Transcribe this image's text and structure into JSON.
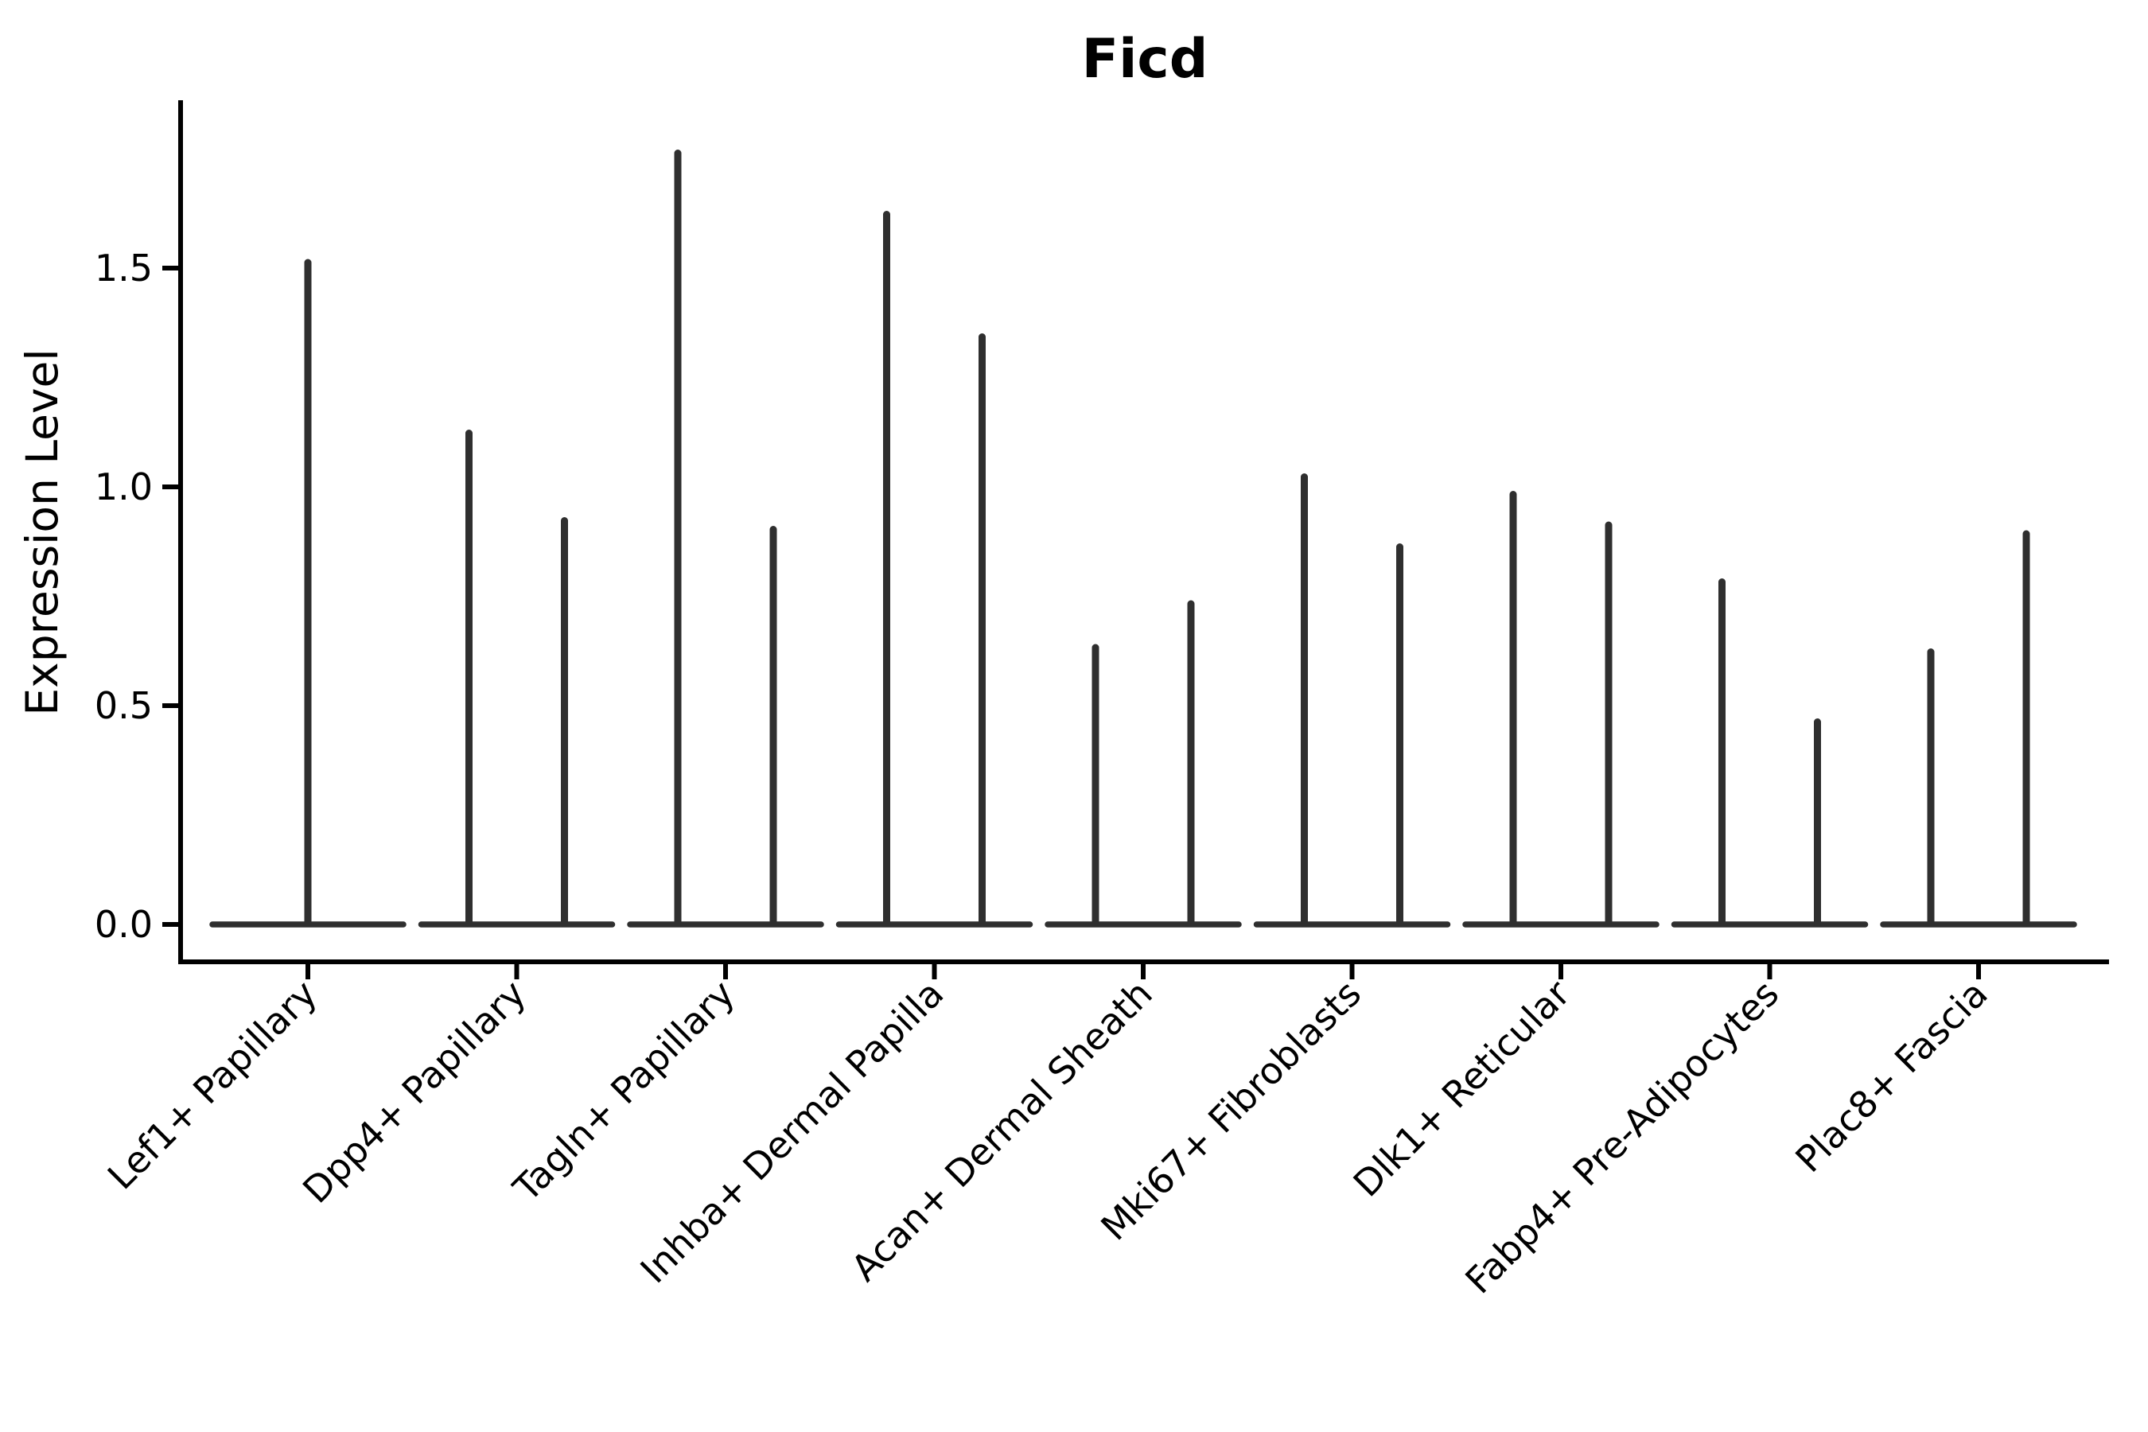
{
  "chart_data": {
    "type": "violin",
    "title": "Ficd",
    "xlabel": "",
    "ylabel": "Expression Level",
    "grid": false,
    "legend": null,
    "ylim": [
      0,
      1.88
    ],
    "yticks": [
      0.0,
      0.5,
      1.0,
      1.5
    ],
    "ytick_labels": [
      "0.0",
      "0.5",
      "1.0",
      "1.5"
    ],
    "categories": [
      "Lef1+ Papillary",
      "Dpp4+ Papillary",
      "Tagln+ Papillary",
      "Inhba+ Dermal Papilla",
      "Acan+ Dermal Sheath",
      "Mki67+ Fibroblasts",
      "Dlk1+ Reticular",
      "Fabp4+ Pre-Adipocytes",
      "Plac8+ Fascia"
    ],
    "series": [
      {
        "name": "violin-left",
        "values": [
          1.52,
          1.13,
          1.77,
          1.63,
          0.64,
          1.03,
          0.99,
          0.79,
          0.63
        ]
      },
      {
        "name": "violin-right",
        "values": [
          null,
          0.93,
          0.91,
          1.35,
          0.74,
          0.87,
          0.92,
          0.47,
          0.9
        ]
      }
    ],
    "violins": [
      {
        "category": "Lef1+ Papillary",
        "groups": [
          {
            "max": 1.52,
            "width": "full"
          }
        ]
      },
      {
        "category": "Dpp4+ Papillary",
        "groups": [
          {
            "max": 1.13
          },
          {
            "max": 0.93
          }
        ]
      },
      {
        "category": "Tagln+ Papillary",
        "groups": [
          {
            "max": 1.77
          },
          {
            "max": 0.91
          }
        ]
      },
      {
        "category": "Inhba+ Dermal Papilla",
        "groups": [
          {
            "max": 1.63
          },
          {
            "max": 1.35
          }
        ]
      },
      {
        "category": "Acan+ Dermal Sheath",
        "groups": [
          {
            "max": 0.64
          },
          {
            "max": 0.74
          }
        ]
      },
      {
        "category": "Mki67+ Fibroblasts",
        "groups": [
          {
            "max": 1.03
          },
          {
            "max": 0.87
          }
        ]
      },
      {
        "category": "Dlk1+ Reticular",
        "groups": [
          {
            "max": 0.99
          },
          {
            "max": 0.92
          }
        ]
      },
      {
        "category": "Fabp4+ Pre-Adipocytes",
        "groups": [
          {
            "max": 0.79
          },
          {
            "max": 0.47
          }
        ]
      },
      {
        "category": "Plac8+ Fascia",
        "groups": [
          {
            "max": 0.63
          },
          {
            "max": 0.9
          }
        ]
      }
    ],
    "all_violins_flat_at_zero": true
  },
  "colors": {
    "background": "#ffffff",
    "axis": "#000000",
    "text": "#000000",
    "violin": "#2f2f2f"
  }
}
